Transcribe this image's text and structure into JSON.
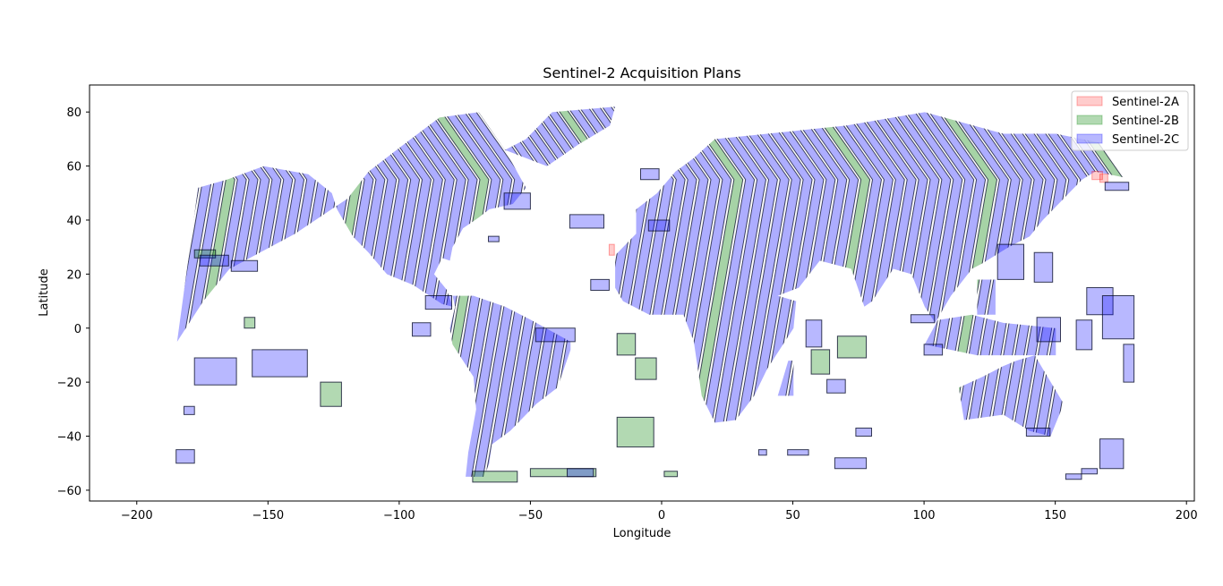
{
  "chart_data": {
    "type": "map-footprints",
    "title": "Sentinel-2 Acquisition Plans",
    "xlabel": "Longitude",
    "ylabel": "Latitude",
    "xlim": [
      -218,
      203
    ],
    "ylim": [
      -64,
      90
    ],
    "x_ticks": [
      -200,
      -150,
      -100,
      -50,
      0,
      50,
      100,
      150,
      200
    ],
    "y_ticks": [
      -60,
      -40,
      -20,
      0,
      20,
      40,
      60,
      80
    ],
    "x_tick_labels": [
      "−200",
      "−150",
      "−100",
      "−50",
      "0",
      "50",
      "100",
      "150",
      "200"
    ],
    "y_tick_labels": [
      "−60",
      "−40",
      "−20",
      "0",
      "20",
      "40",
      "60",
      "80"
    ],
    "grid": false,
    "legend_position": "upper right",
    "series": [
      {
        "name": "Sentinel-2A",
        "color": "#ff0000",
        "fill_opacity": 0.2,
        "polygons": [
          [
            [
              -20,
              27
            ],
            [
              -18,
              27
            ],
            [
              -18,
              31
            ],
            [
              -20,
              31
            ]
          ],
          [
            [
              164,
              55
            ],
            [
              168,
              55
            ],
            [
              168,
              58
            ],
            [
              164,
              58
            ]
          ],
          [
            [
              167,
              54
            ],
            [
              170,
              54
            ],
            [
              170,
              57
            ],
            [
              167,
              57
            ]
          ]
        ]
      },
      {
        "name": "Sentinel-2B",
        "color": "#008000",
        "fill_opacity": 0.3,
        "polygons": [
          [
            [
              -17,
              -10
            ],
            [
              -10,
              -10
            ],
            [
              -10,
              -2
            ],
            [
              -17,
              -2
            ]
          ],
          [
            [
              -10,
              -19
            ],
            [
              -2,
              -19
            ],
            [
              -2,
              -11
            ],
            [
              -10,
              -11
            ]
          ],
          [
            [
              -17,
              -44
            ],
            [
              -3,
              -44
            ],
            [
              -3,
              -33
            ],
            [
              -17,
              -33
            ]
          ],
          [
            [
              -130,
              -29
            ],
            [
              -122,
              -29
            ],
            [
              -122,
              -20
            ],
            [
              -130,
              -20
            ]
          ],
          [
            [
              67,
              -11
            ],
            [
              78,
              -11
            ],
            [
              78,
              -3
            ],
            [
              67,
              -3
            ]
          ],
          [
            [
              57,
              -17
            ],
            [
              64,
              -17
            ],
            [
              64,
              -8
            ],
            [
              57,
              -8
            ]
          ],
          [
            [
              -72,
              -57
            ],
            [
              -55,
              -57
            ],
            [
              -55,
              -53
            ],
            [
              -72,
              -53
            ]
          ],
          [
            [
              -50,
              -55
            ],
            [
              -25,
              -55
            ],
            [
              -25,
              -52
            ],
            [
              -50,
              -52
            ]
          ],
          [
            [
              -159,
              0
            ],
            [
              -155,
              0
            ],
            [
              -155,
              4
            ],
            [
              -159,
              4
            ]
          ],
          [
            [
              -178,
              26
            ],
            [
              -170,
              26
            ],
            [
              -170,
              29
            ],
            [
              -178,
              29
            ]
          ],
          [
            [
              1,
              -55
            ],
            [
              6,
              -55
            ],
            [
              6,
              -53
            ],
            [
              1,
              -53
            ]
          ]
        ]
      },
      {
        "name": "Sentinel-2C",
        "color": "#0000ff",
        "fill_opacity": 0.28,
        "polygons": [
          [
            [
              -178,
              -21
            ],
            [
              -162,
              -21
            ],
            [
              -162,
              -11
            ],
            [
              -178,
              -11
            ]
          ],
          [
            [
              -156,
              -18
            ],
            [
              -135,
              -18
            ],
            [
              -135,
              -8
            ],
            [
              -156,
              -8
            ]
          ],
          [
            [
              -185,
              -50
            ],
            [
              -178,
              -50
            ],
            [
              -178,
              -45
            ],
            [
              -185,
              -45
            ]
          ],
          [
            [
              -182,
              -32
            ],
            [
              -178,
              -32
            ],
            [
              -178,
              -29
            ],
            [
              -182,
              -29
            ]
          ],
          [
            [
              -164,
              21
            ],
            [
              -154,
              21
            ],
            [
              -154,
              25
            ],
            [
              -164,
              25
            ]
          ],
          [
            [
              -176,
              23
            ],
            [
              -165,
              23
            ],
            [
              -165,
              27
            ],
            [
              -176,
              27
            ]
          ],
          [
            [
              -90,
              7
            ],
            [
              -80,
              7
            ],
            [
              -80,
              12
            ],
            [
              -90,
              12
            ]
          ],
          [
            [
              -95,
              -3
            ],
            [
              -88,
              -3
            ],
            [
              -88,
              2
            ],
            [
              -95,
              2
            ]
          ],
          [
            [
              -35,
              37
            ],
            [
              -22,
              37
            ],
            [
              -22,
              42
            ],
            [
              -35,
              42
            ]
          ],
          [
            [
              -66,
              32
            ],
            [
              -62,
              32
            ],
            [
              -62,
              34
            ],
            [
              -66,
              34
            ]
          ],
          [
            [
              -36,
              -55
            ],
            [
              -26,
              -55
            ],
            [
              -26,
              -52
            ],
            [
              -36,
              -52
            ]
          ],
          [
            [
              66,
              -52
            ],
            [
              78,
              -52
            ],
            [
              78,
              -48
            ],
            [
              66,
              -48
            ]
          ],
          [
            [
              48,
              -47
            ],
            [
              56,
              -47
            ],
            [
              56,
              -45
            ],
            [
              48,
              -45
            ]
          ],
          [
            [
              37,
              -47
            ],
            [
              40,
              -47
            ],
            [
              40,
              -45
            ],
            [
              37,
              -45
            ]
          ],
          [
            [
              74,
              -40
            ],
            [
              80,
              -40
            ],
            [
              80,
              -37
            ],
            [
              74,
              -37
            ]
          ],
          [
            [
              139,
              -40
            ],
            [
              148,
              -40
            ],
            [
              148,
              -37
            ],
            [
              139,
              -37
            ]
          ],
          [
            [
              167,
              -52
            ],
            [
              176,
              -52
            ],
            [
              176,
              -41
            ],
            [
              167,
              -41
            ]
          ],
          [
            [
              160,
              -54
            ],
            [
              166,
              -54
            ],
            [
              166,
              -52
            ],
            [
              160,
              -52
            ]
          ],
          [
            [
              154,
              -56
            ],
            [
              160,
              -56
            ],
            [
              160,
              -54
            ],
            [
              154,
              -54
            ]
          ],
          [
            [
              128,
              18
            ],
            [
              138,
              18
            ],
            [
              138,
              31
            ],
            [
              128,
              31
            ]
          ],
          [
            [
              142,
              17
            ],
            [
              149,
              17
            ],
            [
              149,
              28
            ],
            [
              142,
              28
            ]
          ],
          [
            [
              143,
              -5
            ],
            [
              152,
              -5
            ],
            [
              152,
              4
            ],
            [
              143,
              4
            ]
          ],
          [
            [
              158,
              -8
            ],
            [
              164,
              -8
            ],
            [
              164,
              3
            ],
            [
              158,
              3
            ]
          ],
          [
            [
              162,
              5
            ],
            [
              172,
              5
            ],
            [
              172,
              15
            ],
            [
              162,
              15
            ]
          ],
          [
            [
              168,
              -4
            ],
            [
              180,
              -4
            ],
            [
              180,
              12
            ],
            [
              168,
              12
            ]
          ],
          [
            [
              176,
              -20
            ],
            [
              180,
              -20
            ],
            [
              180,
              -6
            ],
            [
              176,
              -6
            ]
          ],
          [
            [
              100,
              -10
            ],
            [
              107,
              -10
            ],
            [
              107,
              -6
            ],
            [
              100,
              -6
            ]
          ],
          [
            [
              95,
              2
            ],
            [
              104,
              2
            ],
            [
              104,
              5
            ],
            [
              95,
              5
            ]
          ],
          [
            [
              169,
              51
            ],
            [
              178,
              51
            ],
            [
              178,
              54
            ],
            [
              169,
              54
            ]
          ],
          [
            [
              -8,
              55
            ],
            [
              -1,
              55
            ],
            [
              -1,
              59
            ],
            [
              -8,
              59
            ]
          ],
          [
            [
              -5,
              36
            ],
            [
              3,
              36
            ],
            [
              3,
              40
            ],
            [
              -5,
              40
            ]
          ],
          [
            [
              -27,
              14
            ],
            [
              -20,
              14
            ],
            [
              -20,
              18
            ],
            [
              -27,
              18
            ]
          ],
          [
            [
              55,
              -7
            ],
            [
              61,
              -7
            ],
            [
              61,
              3
            ],
            [
              55,
              3
            ]
          ],
          [
            [
              63,
              -24
            ],
            [
              70,
              -24
            ],
            [
              70,
              -19
            ],
            [
              63,
              -19
            ]
          ],
          [
            [
              -48,
              -5
            ],
            [
              -33,
              -5
            ],
            [
              -33,
              0
            ],
            [
              -48,
              0
            ]
          ],
          [
            [
              -60,
              44
            ],
            [
              -50,
              44
            ],
            [
              -50,
              50
            ],
            [
              -60,
              50
            ]
          ]
        ]
      }
    ],
    "swaths": [
      {
        "lat_top": 83,
        "lon_start": -183,
        "lon_end": 180,
        "spacing": 4.4,
        "width": 3.4
      }
    ]
  }
}
